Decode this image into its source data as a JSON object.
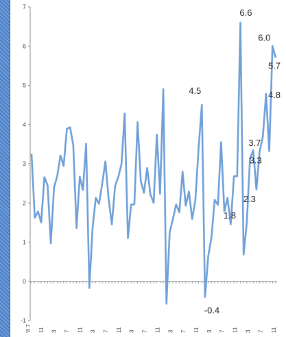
{
  "chart_data": {
    "type": "line",
    "title": "",
    "xlabel": "",
    "ylabel": "",
    "ylim": [
      -1,
      7
    ],
    "yticks": [
      "-1",
      "0",
      "1",
      "2",
      "3",
      "4",
      "5",
      "6",
      "7"
    ],
    "x_tick_labels": [
      "'8 7",
      "11",
      "3",
      "7",
      "11",
      "3",
      "7",
      "11",
      "3",
      "7",
      "11",
      "3",
      "7",
      "11",
      "3",
      "7",
      "11",
      "3",
      "7",
      "11"
    ],
    "grid": false,
    "line_color": "#6f9fd8",
    "series": [
      {
        "values": [
          3.25,
          1.62,
          1.78,
          1.5,
          2.66,
          2.45,
          0.97,
          2.39,
          2.69,
          3.21,
          2.94,
          3.89,
          3.93,
          3.46,
          1.36,
          2.67,
          2.33,
          3.51,
          -0.17,
          1.37,
          2.13,
          1.98,
          2.5,
          3.06,
          2.1,
          1.45,
          2.43,
          2.66,
          3.0,
          4.28,
          1.1,
          1.96,
          1.96,
          4.06,
          2.55,
          2.26,
          2.89,
          2.22,
          2.0,
          3.74,
          2.23,
          4.9,
          -0.57,
          1.25,
          1.59,
          1.96,
          1.76,
          2.8,
          1.93,
          2.29,
          1.59,
          2.08,
          3.41,
          4.5,
          -0.4,
          0.64,
          1.12,
          2.08,
          1.95,
          3.55,
          1.78,
          2.13,
          1.45,
          2.68,
          2.68,
          6.6,
          0.68,
          1.49,
          3.13,
          3.34,
          2.34,
          3.32,
          3.7,
          4.78,
          3.32,
          6.0,
          5.7
        ]
      }
    ],
    "data_labels": [
      {
        "text": "4.5",
        "index": 53
      },
      {
        "text": "-0.4",
        "index": 54
      },
      {
        "text": "1.8",
        "index": 60
      },
      {
        "text": "6.6",
        "index": 65
      },
      {
        "text": "2.3",
        "index": 70
      },
      {
        "text": "3.3",
        "index": 74
      },
      {
        "text": "3.7",
        "index": 72
      },
      {
        "text": "4.8",
        "index": 73
      },
      {
        "text": "6.0",
        "index": 75
      },
      {
        "text": "5.7",
        "index": 76
      }
    ]
  }
}
